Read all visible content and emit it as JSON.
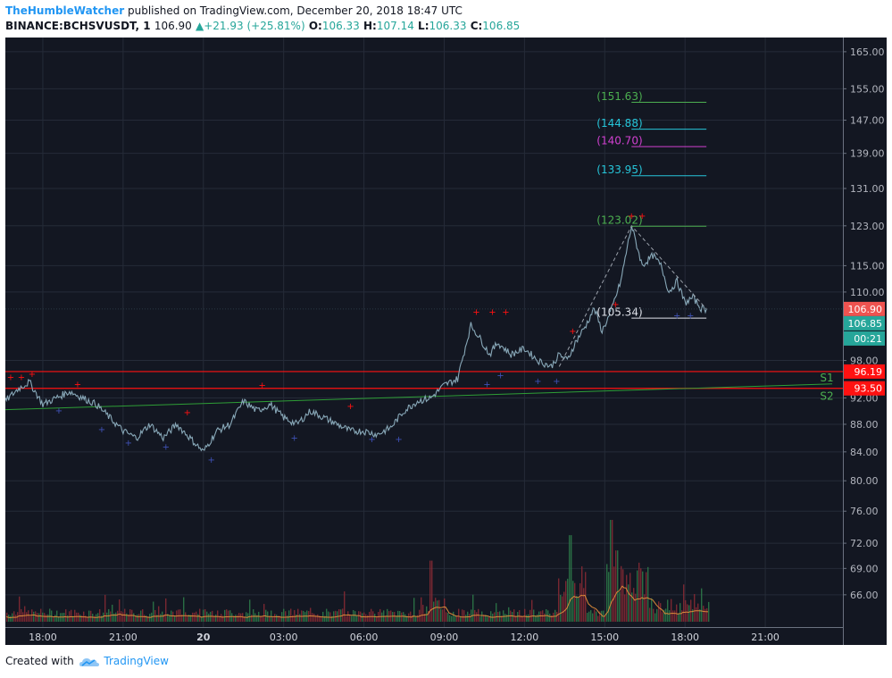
{
  "header": {
    "author": "TheHumbleWatcher",
    "published_text": "published on TradingView.com, December 20, 2018 18:47 UTC",
    "symbol": "BINANCE:BCHSVUSDT, 1",
    "last": "106.90",
    "change": "+21.93 (+25.81%)",
    "o_label": "O:",
    "o": "106.33",
    "h_label": "H:",
    "h": "107.14",
    "l_label": "L:",
    "l": "106.33",
    "c_label": "C:",
    "c": "106.85"
  },
  "footer": {
    "created_with": "Created with",
    "brand": "TradingView",
    "logo_icon": "tradingview-cloud-icon"
  },
  "colors": {
    "bg": "#131722",
    "grid": "#252b38",
    "price_line": "#88a8b8",
    "support_red": "#ff1111",
    "trend_green": "#2e9e36",
    "up_volume": "#2e7d4a",
    "down_volume": "#8b2a34",
    "volume_ma": "#d9893a",
    "fib_green": "#4caf50",
    "fib_cyan": "#26c6da",
    "fib_magenta": "#d040d0",
    "last_price_tag": "#ef5350",
    "close_tag": "#26a69a"
  },
  "chart_data": {
    "type": "line",
    "title": "BINANCE:BCHSVUSDT, 1",
    "x_ticks": [
      "18:00",
      "21:00",
      "20",
      "03:00",
      "06:00",
      "09:00",
      "12:00",
      "15:00",
      "18:00",
      "21:00"
    ],
    "x_tick_hours": [
      0,
      3,
      6,
      9,
      12,
      15,
      18,
      21,
      24,
      27
    ],
    "x_range_hours": [
      -1.4,
      29.9
    ],
    "y_ticks": [
      "165.00",
      "155.00",
      "147.00",
      "139.00",
      "131.00",
      "123.00",
      "115.00",
      "110.00",
      "98.00",
      "92.00",
      "88.00",
      "84.00",
      "80.00",
      "76.00",
      "72.00",
      "69.00",
      "66.00"
    ],
    "y_scale": "log",
    "y_range": [
      62.5,
      169
    ],
    "grid": true,
    "series": [
      {
        "x": [
          -1.4,
          -0.9,
          -0.5,
          0.0,
          0.5,
          1.0,
          1.5,
          2.0,
          2.5,
          3.0,
          3.5,
          4.0,
          4.5,
          5.0,
          5.5,
          6.0,
          6.5,
          7.0,
          7.5,
          8.0,
          8.5,
          9.0,
          9.5,
          10.0,
          10.5,
          11.0,
          11.5,
          12.0,
          12.5,
          13.0,
          13.5,
          14.0,
          14.5,
          15.0,
          15.5,
          16.0,
          16.3,
          16.7,
          17.0,
          17.5,
          18.0,
          18.5,
          19.0,
          19.3,
          19.6,
          19.9,
          20.3,
          20.6,
          20.9,
          21.2
        ],
        "values": [
          91.5,
          93.5,
          94.5,
          91,
          92,
          93,
          92,
          91,
          89,
          87,
          86,
          88,
          86,
          88,
          86,
          84,
          87,
          88,
          91.5,
          90,
          91,
          89,
          88,
          90,
          89,
          88,
          87,
          87,
          86.5,
          87.5,
          90,
          91.5,
          92,
          94,
          95,
          104,
          102,
          99,
          101,
          99,
          100,
          98,
          97,
          99,
          98,
          101,
          104,
          107,
          103,
          106
        ]
      },
      {
        "x": [
          21.2,
          21.6,
          22.0,
          22.4,
          22.8,
          23.1,
          23.4,
          23.7,
          24.0,
          24.3,
          24.6,
          24.8
        ],
        "values": [
          106,
          112,
          123,
          115,
          117,
          115,
          110,
          112,
          108,
          109,
          107,
          106.9
        ]
      }
    ],
    "support_lines": [
      {
        "label": "S1",
        "value": 96.19,
        "tag": "96.19"
      },
      {
        "label": "S2",
        "value": 93.5,
        "tag": "93.50"
      }
    ],
    "trend_line": {
      "x": [
        -1.4,
        29.5
      ],
      "values": [
        90.2,
        94.2
      ]
    },
    "projection_dashed": {
      "x": [
        19.3,
        22.0,
        24.8
      ],
      "values": [
        97,
        123,
        106.9
      ]
    },
    "fib_levels": [
      {
        "label": "(151.63)",
        "value": 151.63,
        "color": "green"
      },
      {
        "label": "(144.88)",
        "value": 144.88,
        "color": "cyan"
      },
      {
        "label": "(140.70)",
        "value": 140.7,
        "color": "magenta"
      },
      {
        "label": "(133.95)",
        "value": 133.95,
        "color": "cyan"
      },
      {
        "label": "(123.02)",
        "value": 123.02,
        "color": "green"
      },
      {
        "label": "(105.34)",
        "value": 105.34,
        "color": "white"
      }
    ],
    "price_tags": [
      {
        "text": "106.90",
        "value": 106.9,
        "kind": "last"
      },
      {
        "text": "106.85",
        "value": 106.85,
        "kind": "close"
      },
      {
        "text": "00:21",
        "value": 101.6,
        "kind": "countdown"
      }
    ],
    "volume": {
      "spikes": [
        {
          "x": 19.7,
          "h": 0.85
        },
        {
          "x": 21.2,
          "h": 1.0
        },
        {
          "x": 21.4,
          "h": 0.7
        },
        {
          "x": 14.5,
          "h": 0.6
        }
      ]
    }
  }
}
